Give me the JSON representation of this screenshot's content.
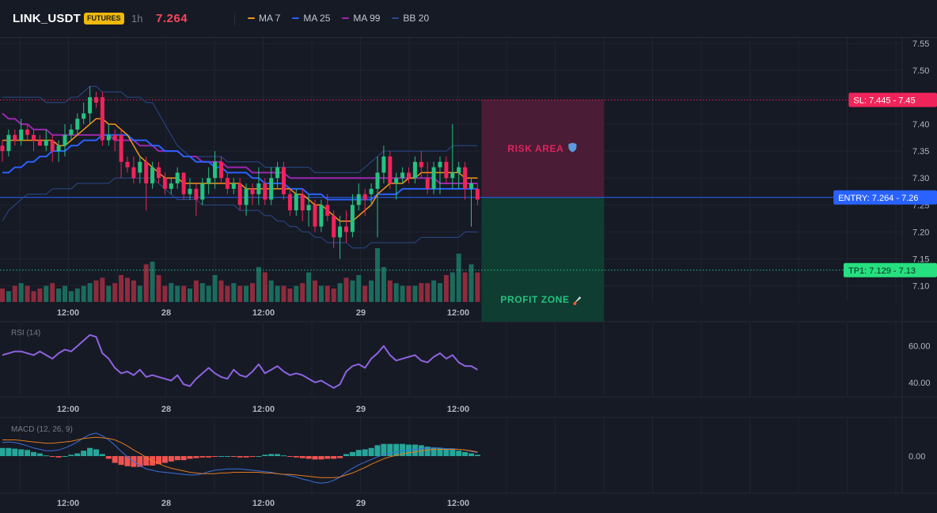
{
  "header": {
    "symbol": "LINK_USDT",
    "badge": "FUTURES",
    "timeframe": "1h",
    "last_price": "7.264",
    "legend": [
      {
        "label": "MA 7",
        "color": "#f7931a"
      },
      {
        "label": "MA 25",
        "color": "#2962ff"
      },
      {
        "label": "MA 99",
        "color": "#9c27b0"
      },
      {
        "label": "BB 20",
        "color": "#2a4a8c"
      }
    ]
  },
  "colors": {
    "up": "#26c281",
    "down": "#f0245a",
    "vol_up": "#1b6b5d",
    "vol_down": "#8e2b3d",
    "rsi": "#8e63e0",
    "macd_line": "#3b6fd8",
    "signal_line": "#e07b1f",
    "hist_up": "#26a69a",
    "hist_down": "#ef5350"
  },
  "x_labels": [
    "12:00",
    "28",
    "12:00",
    "29",
    "12:00"
  ],
  "chart_data": [
    {
      "type": "candlestick",
      "title": "",
      "ylim": [
        7.07,
        7.56
      ],
      "y_ticks": [
        "7.55",
        "7.50",
        "7.45",
        "7.40",
        "7.35",
        "7.30",
        "7.25",
        "7.20",
        "7.15",
        "7.10"
      ],
      "candles": [
        [
          7.36,
          7.37,
          7.33,
          7.35
        ],
        [
          7.35,
          7.39,
          7.34,
          7.38
        ],
        [
          7.38,
          7.39,
          7.36,
          7.37
        ],
        [
          7.37,
          7.41,
          7.36,
          7.39
        ],
        [
          7.39,
          7.4,
          7.37,
          7.38
        ],
        [
          7.38,
          7.39,
          7.35,
          7.37
        ],
        [
          7.37,
          7.38,
          7.36,
          7.36
        ],
        [
          7.36,
          7.39,
          7.35,
          7.37
        ],
        [
          7.37,
          7.38,
          7.33,
          7.35
        ],
        [
          7.35,
          7.37,
          7.33,
          7.36
        ],
        [
          7.36,
          7.4,
          7.34,
          7.38
        ],
        [
          7.38,
          7.4,
          7.37,
          7.39
        ],
        [
          7.39,
          7.42,
          7.38,
          7.41
        ],
        [
          7.41,
          7.44,
          7.4,
          7.42
        ],
        [
          7.42,
          7.47,
          7.4,
          7.45
        ],
        [
          7.45,
          7.46,
          7.43,
          7.44
        ],
        [
          7.45,
          7.46,
          7.36,
          7.37
        ],
        [
          7.37,
          7.4,
          7.36,
          7.38
        ],
        [
          7.38,
          7.39,
          7.35,
          7.37
        ],
        [
          7.38,
          7.39,
          7.3,
          7.33
        ],
        [
          7.33,
          7.34,
          7.31,
          7.32
        ],
        [
          7.32,
          7.34,
          7.29,
          7.3
        ],
        [
          7.31,
          7.34,
          7.29,
          7.33
        ],
        [
          7.33,
          7.34,
          7.24,
          7.29
        ],
        [
          7.29,
          7.33,
          7.28,
          7.32
        ],
        [
          7.32,
          7.33,
          7.29,
          7.3
        ],
        [
          7.3,
          7.31,
          7.27,
          7.28
        ],
        [
          7.28,
          7.3,
          7.27,
          7.29
        ],
        [
          7.29,
          7.32,
          7.28,
          7.31
        ],
        [
          7.31,
          7.31,
          7.26,
          7.27
        ],
        [
          7.27,
          7.3,
          7.26,
          7.28
        ],
        [
          7.28,
          7.29,
          7.23,
          7.26
        ],
        [
          7.26,
          7.3,
          7.25,
          7.29
        ],
        [
          7.29,
          7.32,
          7.27,
          7.3
        ],
        [
          7.3,
          7.35,
          7.28,
          7.33
        ],
        [
          7.33,
          7.34,
          7.29,
          7.3
        ],
        [
          7.3,
          7.31,
          7.27,
          7.28
        ],
        [
          7.28,
          7.3,
          7.27,
          7.29
        ],
        [
          7.29,
          7.3,
          7.24,
          7.25
        ],
        [
          7.25,
          7.29,
          7.23,
          7.28
        ],
        [
          7.28,
          7.29,
          7.25,
          7.27
        ],
        [
          7.27,
          7.32,
          7.25,
          7.29
        ],
        [
          7.29,
          7.3,
          7.25,
          7.26
        ],
        [
          7.26,
          7.32,
          7.25,
          7.3
        ],
        [
          7.3,
          7.33,
          7.28,
          7.32
        ],
        [
          7.32,
          7.33,
          7.26,
          7.27
        ],
        [
          7.27,
          7.28,
          7.23,
          7.24
        ],
        [
          7.24,
          7.28,
          7.23,
          7.27
        ],
        [
          7.27,
          7.28,
          7.22,
          7.24
        ],
        [
          7.24,
          7.27,
          7.21,
          7.25
        ],
        [
          7.25,
          7.26,
          7.2,
          7.21
        ],
        [
          7.21,
          7.26,
          7.2,
          7.25
        ],
        [
          7.25,
          7.27,
          7.22,
          7.23
        ],
        [
          7.23,
          7.24,
          7.17,
          7.19
        ],
        [
          7.19,
          7.23,
          7.15,
          7.21
        ],
        [
          7.21,
          7.24,
          7.18,
          7.2
        ],
        [
          7.2,
          7.27,
          7.19,
          7.25
        ],
        [
          7.25,
          7.29,
          7.24,
          7.27
        ],
        [
          7.27,
          7.28,
          7.23,
          7.26
        ],
        [
          7.27,
          7.29,
          7.25,
          7.28
        ],
        [
          7.28,
          7.34,
          7.19,
          7.31
        ],
        [
          7.31,
          7.36,
          7.29,
          7.34
        ],
        [
          7.34,
          7.35,
          7.28,
          7.29
        ],
        [
          7.29,
          7.31,
          7.26,
          7.3
        ],
        [
          7.3,
          7.32,
          7.29,
          7.31
        ],
        [
          7.31,
          7.32,
          7.29,
          7.3
        ],
        [
          7.3,
          7.34,
          7.29,
          7.33
        ],
        [
          7.33,
          7.35,
          7.3,
          7.32
        ],
        [
          7.3,
          7.33,
          7.27,
          7.28
        ],
        [
          7.28,
          7.33,
          7.27,
          7.32
        ],
        [
          7.32,
          7.34,
          7.27,
          7.33
        ],
        [
          7.33,
          7.34,
          7.29,
          7.3
        ],
        [
          7.3,
          7.4,
          7.28,
          7.31
        ],
        [
          7.31,
          7.33,
          7.28,
          7.32
        ],
        [
          7.32,
          7.33,
          7.26,
          7.28
        ],
        [
          7.28,
          7.3,
          7.21,
          7.29
        ],
        [
          7.28,
          7.29,
          7.25,
          7.26
        ]
      ],
      "ma7": [
        7.37,
        7.37,
        7.37,
        7.37,
        7.37,
        7.37,
        7.37,
        7.37,
        7.37,
        7.36,
        7.36,
        7.37,
        7.38,
        7.39,
        7.4,
        7.41,
        7.41,
        7.4,
        7.4,
        7.39,
        7.38,
        7.36,
        7.34,
        7.33,
        7.32,
        7.31,
        7.3,
        7.3,
        7.3,
        7.29,
        7.29,
        7.29,
        7.29,
        7.29,
        7.29,
        7.29,
        7.29,
        7.29,
        7.29,
        7.28,
        7.28,
        7.28,
        7.28,
        7.28,
        7.28,
        7.28,
        7.28,
        7.27,
        7.27,
        7.26,
        7.25,
        7.25,
        7.24,
        7.23,
        7.22,
        7.22,
        7.22,
        7.23,
        7.24,
        7.25,
        7.27,
        7.28,
        7.29,
        7.29,
        7.29,
        7.3,
        7.3,
        7.31,
        7.31,
        7.31,
        7.31,
        7.31,
        7.31,
        7.31,
        7.3,
        7.3,
        7.3
      ],
      "ma25": [
        7.31,
        7.31,
        7.32,
        7.32,
        7.33,
        7.33,
        7.34,
        7.34,
        7.35,
        7.35,
        7.35,
        7.36,
        7.36,
        7.37,
        7.37,
        7.37,
        7.38,
        7.38,
        7.38,
        7.38,
        7.38,
        7.37,
        7.37,
        7.37,
        7.36,
        7.36,
        7.35,
        7.35,
        7.35,
        7.34,
        7.34,
        7.33,
        7.33,
        7.33,
        7.32,
        7.32,
        7.31,
        7.31,
        7.31,
        7.31,
        7.3,
        7.3,
        7.29,
        7.29,
        7.29,
        7.29,
        7.28,
        7.28,
        7.28,
        7.27,
        7.27,
        7.27,
        7.26,
        7.26,
        7.26,
        7.26,
        7.26,
        7.26,
        7.26,
        7.26,
        7.27,
        7.27,
        7.27,
        7.27,
        7.28,
        7.28,
        7.28,
        7.28,
        7.28,
        7.28,
        7.28,
        7.28,
        7.28,
        7.28,
        7.28,
        7.28,
        7.28
      ],
      "ma99": [
        7.42,
        7.41,
        7.41,
        7.4,
        7.4,
        7.39,
        7.39,
        7.39,
        7.38,
        7.38,
        7.38,
        7.38,
        7.38,
        7.38,
        7.38,
        7.38,
        7.38,
        7.38,
        7.37,
        7.37,
        7.37,
        7.37,
        7.36,
        7.36,
        7.36,
        7.35,
        7.35,
        7.35,
        7.35,
        7.34,
        7.34,
        7.34,
        7.33,
        7.33,
        7.33,
        7.33,
        7.32,
        7.32,
        7.32,
        7.32,
        7.31,
        7.31,
        7.31,
        7.31,
        7.31,
        7.31,
        7.3,
        7.3,
        7.3,
        7.3,
        7.3,
        7.3,
        7.3,
        7.3,
        7.3,
        7.3,
        7.3,
        7.3,
        7.3,
        7.3,
        7.3,
        7.3,
        7.3,
        7.3,
        7.3,
        7.3,
        7.3,
        7.3,
        7.3,
        7.3,
        7.29,
        7.29,
        7.29,
        7.29,
        7.29,
        7.29,
        7.29
      ],
      "bb_upper": [
        7.45,
        7.45,
        7.45,
        7.45,
        7.45,
        7.45,
        7.45,
        7.44,
        7.44,
        7.44,
        7.44,
        7.45,
        7.45,
        7.46,
        7.47,
        7.47,
        7.46,
        7.46,
        7.46,
        7.46,
        7.45,
        7.45,
        7.45,
        7.44,
        7.44,
        7.42,
        7.4,
        7.38,
        7.36,
        7.35,
        7.34,
        7.34,
        7.34,
        7.34,
        7.34,
        7.34,
        7.33,
        7.33,
        7.33,
        7.33,
        7.33,
        7.33,
        7.32,
        7.32,
        7.32,
        7.32,
        7.32,
        7.32,
        7.32,
        7.32,
        7.31,
        7.31,
        7.31,
        7.31,
        7.31,
        7.31,
        7.31,
        7.31,
        7.32,
        7.33,
        7.34,
        7.35,
        7.35,
        7.35,
        7.35,
        7.35,
        7.35,
        7.35,
        7.35,
        7.35,
        7.35,
        7.35,
        7.36,
        7.36,
        7.36,
        7.36,
        7.36
      ],
      "bb_lower": [
        7.22,
        7.24,
        7.25,
        7.26,
        7.27,
        7.27,
        7.27,
        7.27,
        7.28,
        7.28,
        7.28,
        7.28,
        7.29,
        7.29,
        7.29,
        7.29,
        7.29,
        7.29,
        7.3,
        7.3,
        7.3,
        7.3,
        7.3,
        7.3,
        7.3,
        7.29,
        7.28,
        7.27,
        7.26,
        7.26,
        7.26,
        7.26,
        7.25,
        7.25,
        7.25,
        7.25,
        7.25,
        7.25,
        7.24,
        7.24,
        7.24,
        7.24,
        7.23,
        7.23,
        7.22,
        7.22,
        7.21,
        7.21,
        7.2,
        7.2,
        7.19,
        7.19,
        7.18,
        7.18,
        7.18,
        7.18,
        7.17,
        7.17,
        7.17,
        7.18,
        7.18,
        7.18,
        7.18,
        7.18,
        7.18,
        7.18,
        7.18,
        7.19,
        7.19,
        7.19,
        7.19,
        7.19,
        7.19,
        7.19,
        7.2,
        7.2,
        7.2
      ],
      "volume": [
        0.25,
        0.2,
        0.3,
        0.35,
        0.3,
        0.2,
        0.25,
        0.3,
        0.35,
        0.25,
        0.3,
        0.2,
        0.25,
        0.3,
        0.35,
        0.4,
        0.45,
        0.3,
        0.35,
        0.5,
        0.45,
        0.4,
        0.3,
        0.7,
        0.75,
        0.5,
        0.3,
        0.35,
        0.3,
        0.3,
        0.25,
        0.4,
        0.35,
        0.3,
        0.5,
        0.4,
        0.3,
        0.35,
        0.3,
        0.3,
        0.35,
        0.65,
        0.55,
        0.4,
        0.3,
        0.3,
        0.25,
        0.3,
        0.35,
        0.55,
        0.4,
        0.3,
        0.3,
        0.25,
        0.35,
        0.45,
        0.4,
        0.5,
        0.3,
        0.4,
        1.0,
        0.65,
        0.4,
        0.35,
        0.3,
        0.3,
        0.3,
        0.35,
        0.35,
        0.4,
        0.35,
        0.5,
        0.55,
        0.9,
        0.55,
        0.7,
        0.55
      ],
      "annotations": {
        "sl_label": "SL: 7.445",
        "sl_price": 7.445,
        "sl_axis": "7.45",
        "entry_label": "ENTRY: 7.264",
        "entry_price": 7.264,
        "entry_axis": "7.26",
        "tp_label": "TP1: 7.129",
        "tp_price": 7.129,
        "tp_axis": "7.13",
        "risk_label": "RISK AREA",
        "profit_label": "PROFIT ZONE"
      }
    },
    {
      "type": "line",
      "title": "RSI (14)",
      "ylim": [
        33,
        72
      ],
      "y_ticks": [
        "60.00",
        "40.00"
      ],
      "values": [
        55,
        56,
        57,
        57,
        56,
        55,
        57,
        55,
        53,
        56,
        58,
        57,
        60,
        63,
        66,
        65,
        56,
        53,
        48,
        45,
        46,
        44,
        47,
        43,
        44,
        43,
        42,
        41,
        44,
        39,
        38,
        42,
        45,
        48,
        45,
        43,
        42,
        47,
        44,
        43,
        46,
        50,
        45,
        47,
        49,
        46,
        44,
        45,
        44,
        42,
        40,
        41,
        39,
        37,
        39,
        46,
        49,
        50,
        48,
        53,
        56,
        60,
        55,
        52,
        53,
        54,
        55,
        52,
        51,
        54,
        56,
        53,
        55,
        51,
        49,
        49,
        47
      ]
    },
    {
      "type": "bar",
      "title": "MACD (12, 26, 9)",
      "ylim": [
        -0.055,
        0.055
      ],
      "y_ticks": [
        "0.00"
      ],
      "histogram": [
        0.012,
        0.012,
        0.011,
        0.01,
        0.009,
        0.006,
        0.004,
        0.001,
        -0.001,
        -0.002,
        0.0,
        0.002,
        0.004,
        0.008,
        0.012,
        0.01,
        0.003,
        -0.004,
        -0.01,
        -0.013,
        -0.015,
        -0.016,
        -0.016,
        -0.014,
        -0.014,
        -0.012,
        -0.01,
        -0.008,
        -0.006,
        -0.006,
        -0.004,
        -0.003,
        -0.002,
        -0.002,
        -0.001,
        0.0,
        0.0,
        -0.001,
        -0.002,
        -0.002,
        -0.001,
        0.0,
        0.002,
        0.003,
        0.003,
        0.001,
        -0.001,
        -0.002,
        -0.003,
        -0.004,
        -0.005,
        -0.005,
        -0.004,
        -0.004,
        -0.003,
        0.003,
        0.006,
        0.009,
        0.01,
        0.012,
        0.016,
        0.018,
        0.018,
        0.018,
        0.018,
        0.017,
        0.017,
        0.016,
        0.014,
        0.013,
        0.012,
        0.011,
        0.01,
        0.008,
        0.006,
        0.004,
        0.002
      ],
      "macd_line": [
        0.02,
        0.021,
        0.02,
        0.018,
        0.015,
        0.012,
        0.01,
        0.008,
        0.008,
        0.009,
        0.012,
        0.016,
        0.021,
        0.027,
        0.032,
        0.034,
        0.03,
        0.024,
        0.016,
        0.007,
        -0.001,
        -0.008,
        -0.014,
        -0.019,
        -0.021,
        -0.023,
        -0.024,
        -0.025,
        -0.026,
        -0.027,
        -0.028,
        -0.028,
        -0.026,
        -0.023,
        -0.021,
        -0.02,
        -0.019,
        -0.019,
        -0.019,
        -0.02,
        -0.021,
        -0.022,
        -0.023,
        -0.024,
        -0.026,
        -0.027,
        -0.029,
        -0.031,
        -0.034,
        -0.036,
        -0.039,
        -0.04,
        -0.039,
        -0.036,
        -0.031,
        -0.024,
        -0.018,
        -0.013,
        -0.009,
        -0.005,
        -0.001,
        0.002,
        0.004,
        0.006,
        0.008,
        0.009,
        0.01,
        0.011,
        0.012,
        0.012,
        0.012,
        0.011,
        0.011,
        0.01,
        0.009,
        0.007,
        0.005
      ],
      "signal_line": [
        0.024,
        0.024,
        0.024,
        0.023,
        0.022,
        0.021,
        0.02,
        0.019,
        0.019,
        0.02,
        0.021,
        0.022,
        0.024,
        0.026,
        0.027,
        0.028,
        0.027,
        0.026,
        0.024,
        0.02,
        0.015,
        0.009,
        0.004,
        -0.002,
        -0.007,
        -0.011,
        -0.015,
        -0.018,
        -0.02,
        -0.022,
        -0.024,
        -0.025,
        -0.026,
        -0.026,
        -0.026,
        -0.025,
        -0.025,
        -0.024,
        -0.024,
        -0.024,
        -0.024,
        -0.024,
        -0.025,
        -0.025,
        -0.026,
        -0.027,
        -0.027,
        -0.028,
        -0.029,
        -0.03,
        -0.031,
        -0.032,
        -0.032,
        -0.032,
        -0.031,
        -0.028,
        -0.025,
        -0.021,
        -0.017,
        -0.012,
        -0.008,
        -0.004,
        -0.001,
        0.001,
        0.003,
        0.005,
        0.006,
        0.008,
        0.009,
        0.01,
        0.01,
        0.01,
        0.01,
        0.01,
        0.009,
        0.008,
        0.006
      ]
    }
  ]
}
